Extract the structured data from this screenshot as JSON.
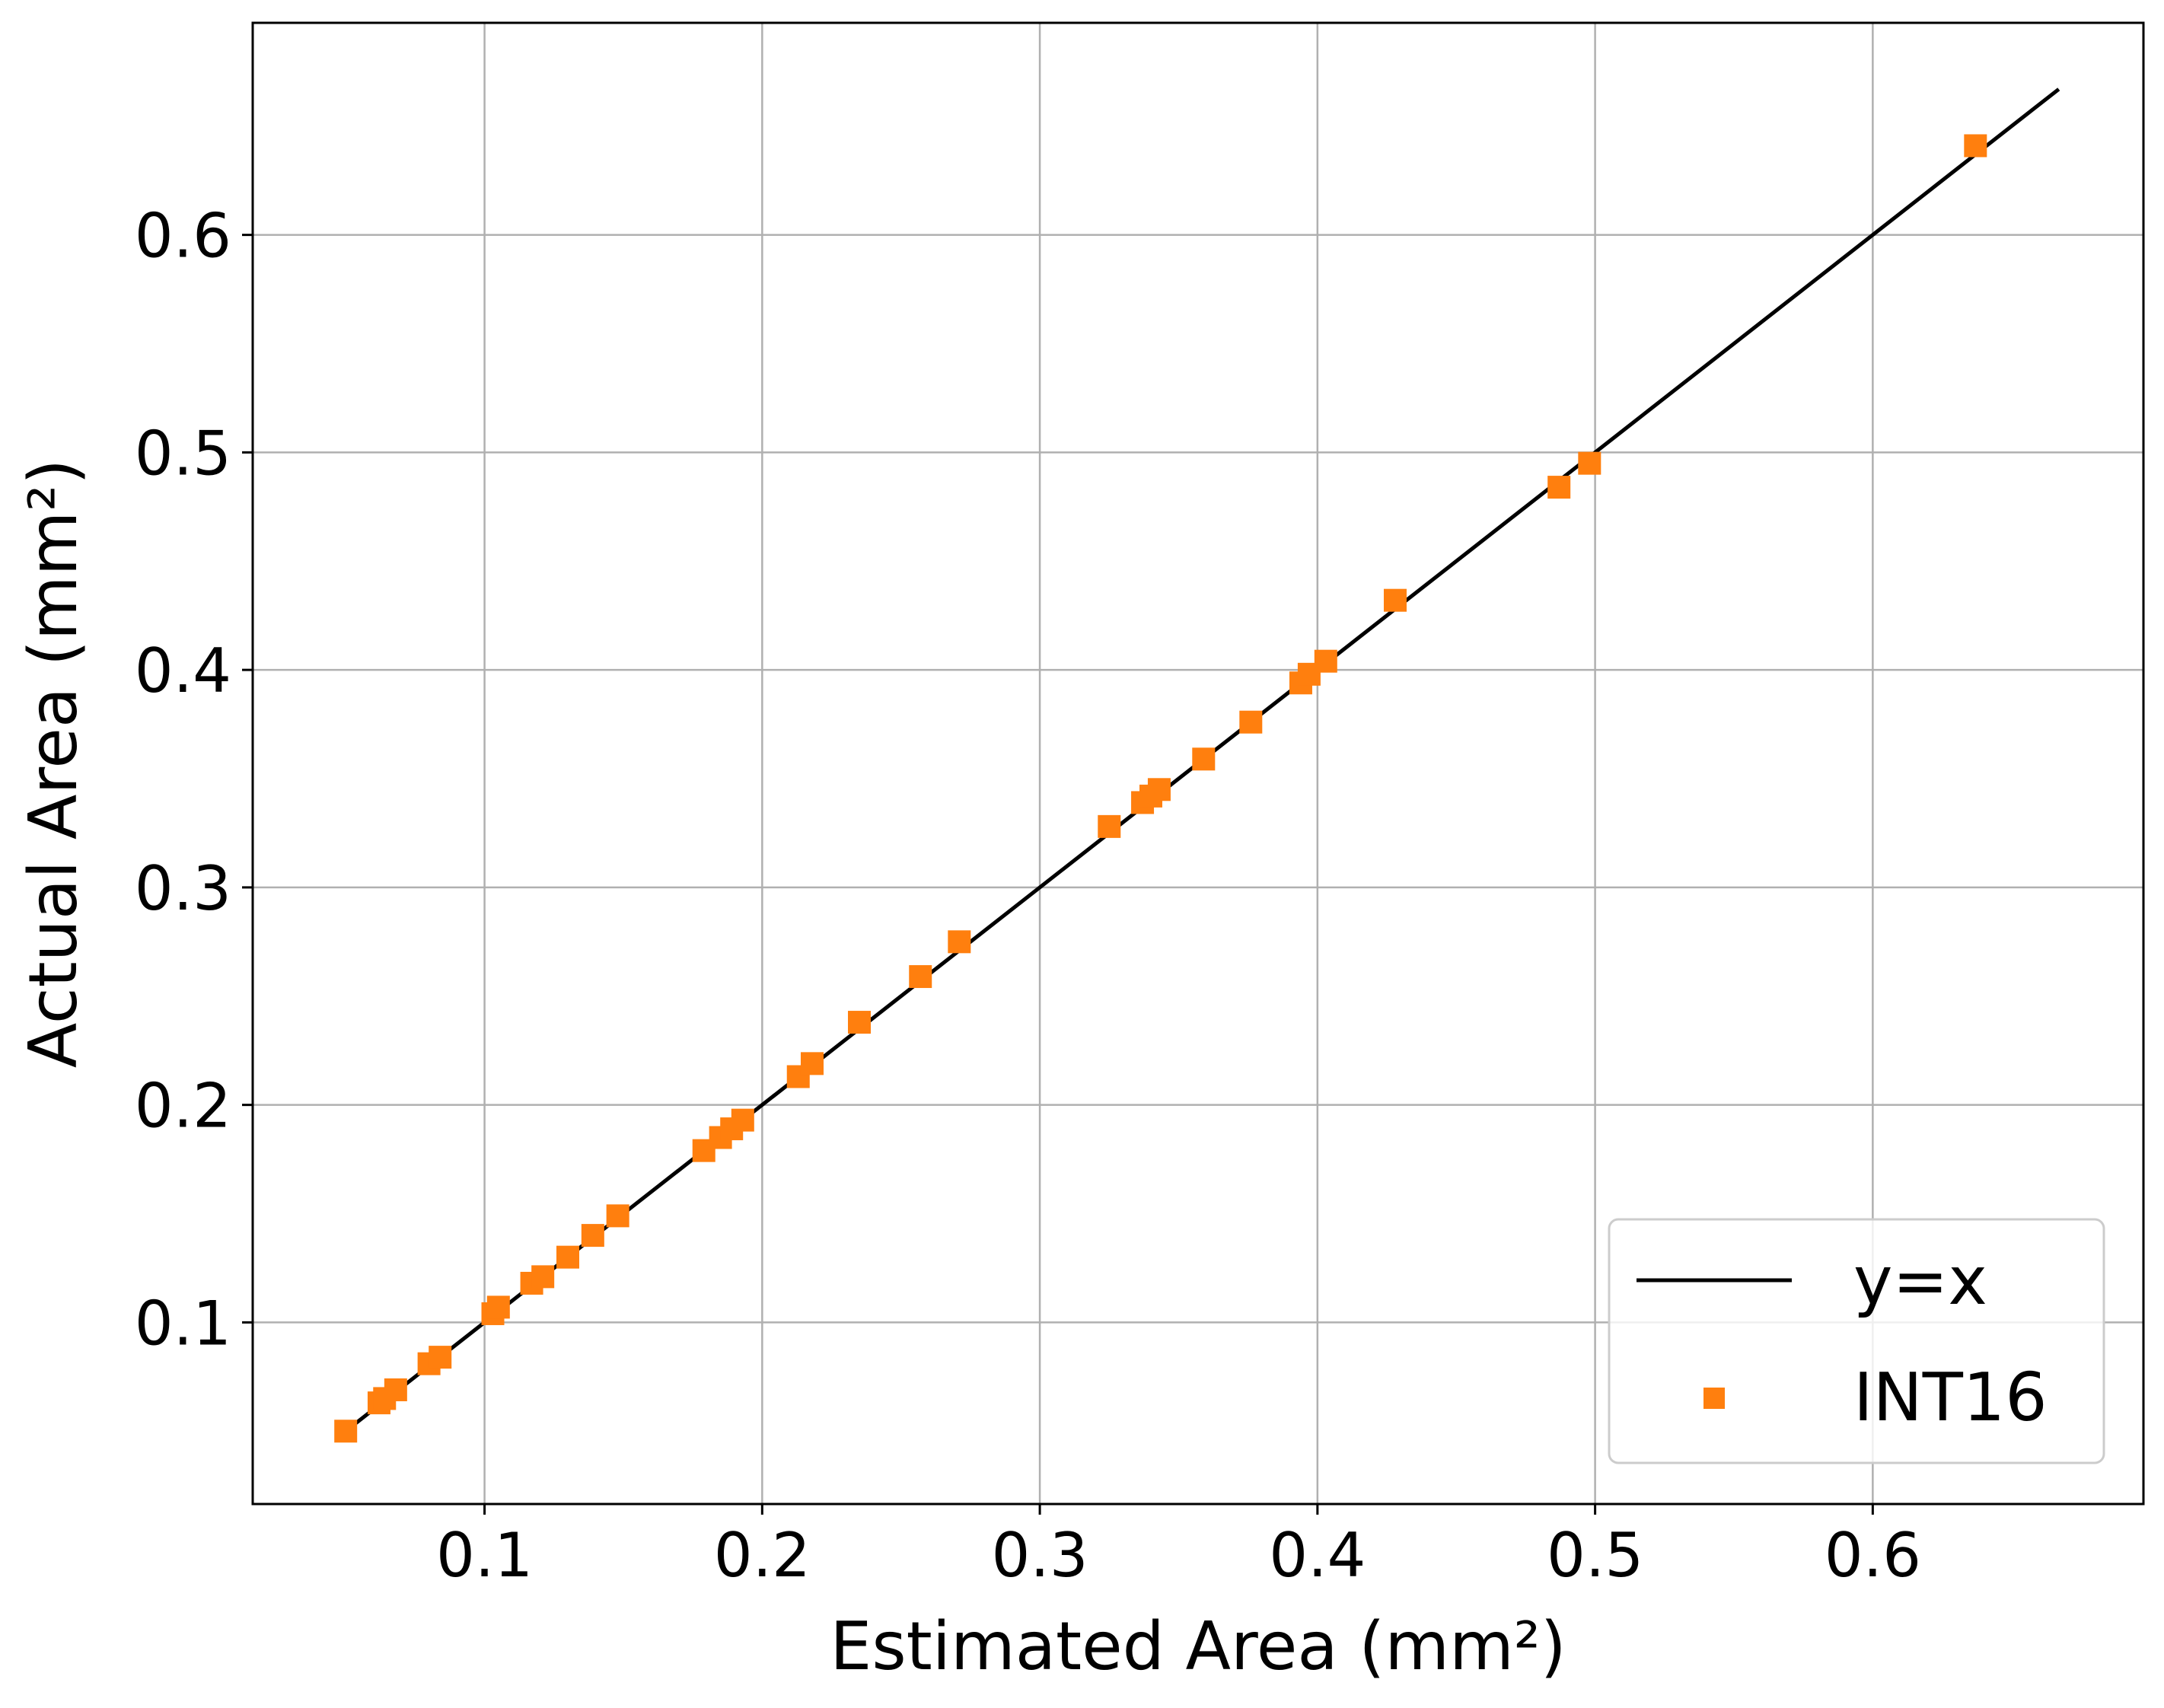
{
  "chart_data": {
    "type": "scatter",
    "title": "",
    "xlabel": "Estimated Area (mm²)",
    "ylabel": "Actual Area (mm²)",
    "xlim": [
      0.0165,
      0.6975
    ],
    "ylim": [
      0.0165,
      0.6975
    ],
    "xticks": [
      0.1,
      0.2,
      0.3,
      0.4,
      0.5,
      0.6
    ],
    "yticks": [
      0.1,
      0.2,
      0.3,
      0.4,
      0.5,
      0.6
    ],
    "xtick_labels": [
      "0.1",
      "0.2",
      "0.3",
      "0.4",
      "0.5",
      "0.6"
    ],
    "ytick_labels": [
      "0.1",
      "0.2",
      "0.3",
      "0.4",
      "0.5",
      "0.6"
    ],
    "grid": true,
    "legend_position": "lower right",
    "series": [
      {
        "name": "y=x",
        "kind": "line",
        "color": "#000000",
        "x": [
          0.047,
          0.667
        ],
        "y": [
          0.047,
          0.667
        ]
      },
      {
        "name": "INT16",
        "kind": "scatter",
        "marker": "square",
        "color": "#ff7f0e",
        "x": [
          0.05,
          0.062,
          0.064,
          0.068,
          0.08,
          0.084,
          0.103,
          0.105,
          0.117,
          0.121,
          0.13,
          0.139,
          0.148,
          0.179,
          0.185,
          0.189,
          0.193,
          0.213,
          0.218,
          0.235,
          0.257,
          0.271,
          0.325,
          0.337,
          0.34,
          0.343,
          0.359,
          0.376,
          0.394,
          0.397,
          0.403,
          0.428,
          0.487,
          0.498,
          0.637
        ],
        "y": [
          0.05,
          0.063,
          0.065,
          0.069,
          0.081,
          0.084,
          0.104,
          0.107,
          0.118,
          0.121,
          0.13,
          0.14,
          0.149,
          0.179,
          0.185,
          0.189,
          0.193,
          0.213,
          0.219,
          0.238,
          0.259,
          0.275,
          0.328,
          0.339,
          0.342,
          0.345,
          0.359,
          0.376,
          0.394,
          0.398,
          0.404,
          0.432,
          0.484,
          0.495,
          0.641
        ]
      }
    ]
  }
}
